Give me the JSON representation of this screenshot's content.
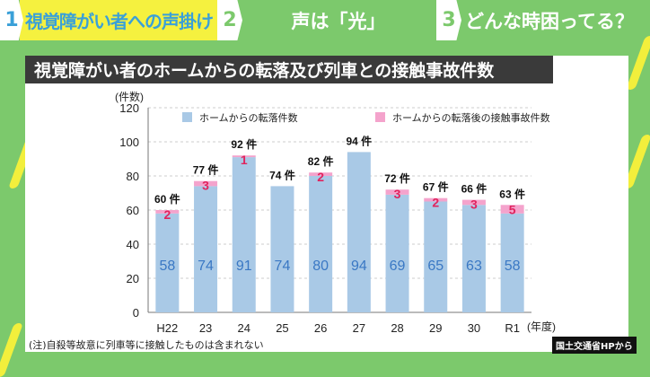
{
  "tabs": [
    {
      "number": "1",
      "label": "視覚障がい者への声掛け",
      "active": true
    },
    {
      "number": "2",
      "label": "声は「光」",
      "active": false
    },
    {
      "number": "3",
      "label": "どんな時困ってる？",
      "active": false
    }
  ],
  "title": "視覚障がい者のホームからの転落及び列車との接触事故件数",
  "note": "(注)自殺等故意に列車等に接触したものは含まれない",
  "source": "国土交通省HPから",
  "colors": {
    "background": "#7cc96c",
    "active_tab": "#f5f13f",
    "falls": "#a9c9e6",
    "accidents": "#f4a3cc",
    "fall_label": "#3a78c4",
    "accident_label": "#e0245e"
  },
  "chart_data": {
    "type": "bar",
    "stacked": true,
    "ylabel": "(件数)",
    "xlabel": "(年度)",
    "ylim": [
      0,
      120
    ],
    "yticks": [
      0,
      20,
      40,
      60,
      80,
      100,
      120
    ],
    "grid": true,
    "legend_position": "top",
    "categories": [
      "H22",
      "23",
      "24",
      "25",
      "26",
      "27",
      "28",
      "29",
      "30",
      "R1"
    ],
    "series": [
      {
        "name": "ホームからの転落件数",
        "values": [
          58,
          74,
          91,
          74,
          80,
          94,
          69,
          65,
          63,
          58
        ]
      },
      {
        "name": "ホームからの転落後の接触事故件数",
        "values": [
          2,
          3,
          1,
          0,
          2,
          0,
          3,
          2,
          3,
          5
        ]
      }
    ],
    "totals": [
      "60 件",
      "77 件",
      "92 件",
      "74 件",
      "82 件",
      "94 件",
      "72 件",
      "67 件",
      "66 件",
      "63 件"
    ]
  }
}
